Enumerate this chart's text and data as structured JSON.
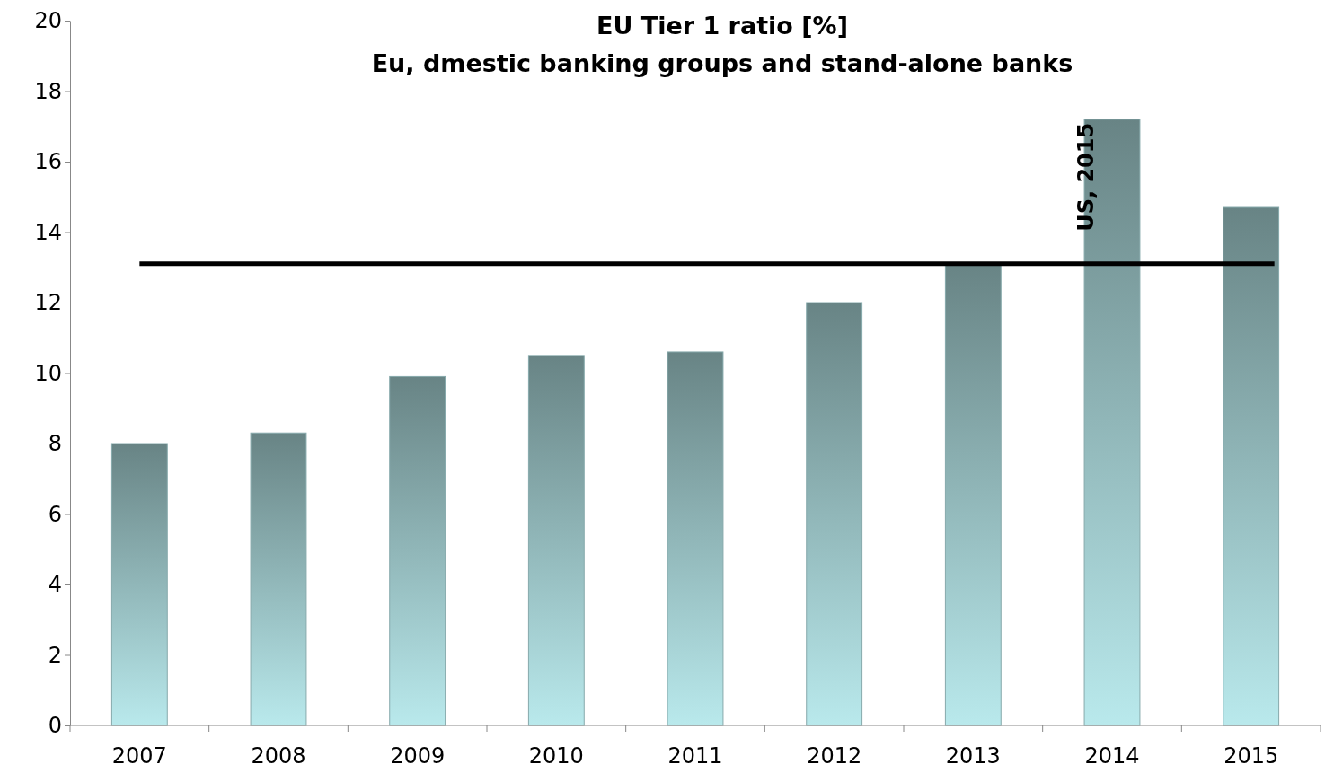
{
  "chart_data": {
    "type": "bar",
    "title": "EU Tier 1 ratio [%]",
    "subtitle": "Eu, dmestic banking groups and stand-alone banks",
    "categories": [
      "2007",
      "2008",
      "2009",
      "2010",
      "2011",
      "2012",
      "2013",
      "2014",
      "2015"
    ],
    "values": [
      8.0,
      8.3,
      9.9,
      10.5,
      10.6,
      12.0,
      13.1,
      17.2,
      14.7
    ],
    "color": "#86a9ab",
    "ylim": [
      0,
      20
    ],
    "yticks": [
      0,
      2,
      4,
      6,
      8,
      10,
      12,
      14,
      16,
      18,
      20
    ],
    "grid": false,
    "ref_lines": [
      {
        "axis": "y",
        "value": 13.1,
        "label": "US, 2015",
        "color": "#000000",
        "line_style": "solid"
      }
    ]
  }
}
